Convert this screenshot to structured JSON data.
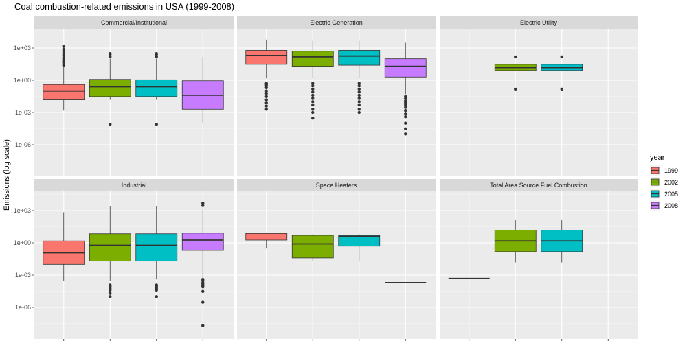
{
  "chart_data": {
    "type": "boxplot",
    "title": "Coal combustion-related emissions in USA (1999-2008)",
    "ylabel": "Emissions (log scale)",
    "xlabel": "",
    "y_scale": "log10",
    "ylim": [
      1e-08,
      100000.0
    ],
    "y_ticks": [
      {
        "value": 1000.0,
        "label": "1e+03"
      },
      {
        "value": 1,
        "label": "1e+00"
      },
      {
        "value": 0.001,
        "label": "1e-03"
      },
      {
        "value": 1e-06,
        "label": "1e-06"
      }
    ],
    "legend": {
      "title": "year",
      "placement": "right",
      "entries": [
        {
          "label": "1999",
          "color": "#F8766D"
        },
        {
          "label": "2002",
          "color": "#7CAE00"
        },
        {
          "label": "2005",
          "color": "#00BFC4"
        },
        {
          "label": "2008",
          "color": "#C77CFF"
        }
      ]
    },
    "grid": true,
    "panels": [
      {
        "name": "Commercial/Institutional",
        "boxes": [
          {
            "year": "1999",
            "whisker_low": 0.0015,
            "q1": 0.015,
            "median": 0.1,
            "q3": 0.4,
            "whisker_high": 20,
            "outliers": [
              25,
              40,
              60,
              90,
              130,
              200,
              300,
              500,
              800,
              1500
            ]
          },
          {
            "year": "2002",
            "whisker_low": 0.015,
            "q1": 0.03,
            "median": 0.25,
            "q3": 1.2,
            "whisker_high": 100,
            "outliers": [
              8e-05,
              150,
              250,
              300
            ]
          },
          {
            "year": "2005",
            "whisker_low": 0.015,
            "q1": 0.03,
            "median": 0.25,
            "q3": 1.1,
            "whisker_high": 100,
            "outliers": [
              8e-05,
              150,
              250,
              300
            ]
          },
          {
            "year": "2008",
            "whisker_low": 0.0001,
            "q1": 0.002,
            "median": 0.04,
            "q3": 0.9,
            "whisker_high": 150,
            "outliers": []
          }
        ]
      },
      {
        "name": "Electric Generation",
        "boxes": [
          {
            "year": "1999",
            "whisker_low": 1.5,
            "q1": 30,
            "median": 200,
            "q3": 600,
            "whisker_high": 6000,
            "outliers": [
              0.002,
              0.004,
              0.008,
              0.015,
              0.03,
              0.06,
              0.1,
              0.2,
              0.3,
              0.4,
              0.5
            ]
          },
          {
            "year": "2002",
            "whisker_low": 1.5,
            "q1": 20,
            "median": 150,
            "q3": 500,
            "whisker_high": 4500,
            "outliers": [
              0.0003,
              0.001,
              0.002,
              0.005,
              0.01,
              0.02,
              0.04,
              0.08,
              0.15,
              0.3,
              0.5
            ]
          },
          {
            "year": "2005",
            "whisker_low": 1.5,
            "q1": 25,
            "median": 180,
            "q3": 600,
            "whisker_high": 4500,
            "outliers": [
              0.001,
              0.002,
              0.005,
              0.01,
              0.02,
              0.04,
              0.08,
              0.15,
              0.3,
              0.5
            ]
          },
          {
            "year": "2008",
            "whisker_low": 0.05,
            "q1": 2,
            "median": 20,
            "q3": 100,
            "whisker_high": 3500,
            "outliers": [
              1e-05,
              3e-05,
              0.0001,
              0.0004,
              0.0008,
              0.0015,
              0.003,
              0.005,
              0.008,
              0.012,
              0.02,
              0.03
            ]
          }
        ]
      },
      {
        "name": "Electric Utility",
        "boxes": [
          {
            "year": "2002",
            "whisker_low": 8,
            "q1": 8,
            "median": 15,
            "q3": 30,
            "whisker_high": 30,
            "outliers": [
              0.15,
              150
            ]
          },
          {
            "year": "2005",
            "whisker_low": 8,
            "q1": 8,
            "median": 15,
            "q3": 30,
            "whisker_high": 30,
            "outliers": [
              0.15,
              150
            ]
          }
        ]
      },
      {
        "name": "Industrial",
        "boxes": [
          {
            "year": "1999",
            "whisker_low": 0.0003,
            "q1": 0.01,
            "median": 0.12,
            "q3": 1.5,
            "whisker_high": 700,
            "outliers": []
          },
          {
            "year": "2002",
            "whisker_low": 0.0003,
            "q1": 0.02,
            "median": 0.6,
            "q3": 7,
            "whisker_high": 2500,
            "outliers": [
              1e-05,
              2e-05,
              4e-05,
              6e-05,
              8e-05,
              0.0001,
              0.00012
            ]
          },
          {
            "year": "2005",
            "whisker_low": 0.0004,
            "q1": 0.02,
            "median": 0.6,
            "q3": 7,
            "whisker_high": 2500,
            "outliers": [
              1e-05,
              4e-05,
              6e-05,
              8e-05,
              0.0001,
              0.00012
            ]
          },
          {
            "year": "2008",
            "whisker_low": 0.0003,
            "q1": 0.2,
            "median": 1.8,
            "q3": 8,
            "whisker_high": 1500,
            "outliers": [
              2e-08,
              3e-06,
              3e-05,
              8e-05,
              0.0001,
              0.00015,
              0.0002,
              0.0003,
              0.0004,
              3000,
              5000
            ]
          }
        ]
      },
      {
        "name": "Space Heaters",
        "boxes": [
          {
            "year": "1999",
            "whisker_low": 0.3,
            "q1": 1.8,
            "median": 8,
            "q3": 8,
            "whisker_high": 8,
            "outliers": []
          },
          {
            "year": "2002",
            "whisker_low": 0.02,
            "q1": 0.04,
            "median": 0.8,
            "q3": 5,
            "whisker_high": 7,
            "outliers": []
          },
          {
            "year": "2005",
            "whisker_low": 0.02,
            "q1": 0.5,
            "median": 4,
            "q3": 5,
            "whisker_high": 7,
            "outliers": []
          },
          {
            "year": "2008",
            "whisker_low": 0.0002,
            "q1": 0.0002,
            "median": 0.0002,
            "q3": 0.0002,
            "whisker_high": 0.0002,
            "outliers": []
          }
        ]
      },
      {
        "name": "Total Area Source Fuel Combustion",
        "boxes": [
          {
            "year": "1999",
            "whisker_low": 0.0005,
            "q1": 0.0005,
            "median": 0.0005,
            "q3": 0.0005,
            "whisker_high": 0.0005,
            "outliers": []
          },
          {
            "year": "2002",
            "whisker_low": 0.015,
            "q1": 0.15,
            "median": 1.5,
            "q3": 15,
            "whisker_high": 150,
            "outliers": []
          },
          {
            "year": "2005",
            "whisker_low": 0.015,
            "q1": 0.15,
            "median": 1.5,
            "q3": 15,
            "whisker_high": 150,
            "outliers": []
          }
        ]
      }
    ]
  }
}
